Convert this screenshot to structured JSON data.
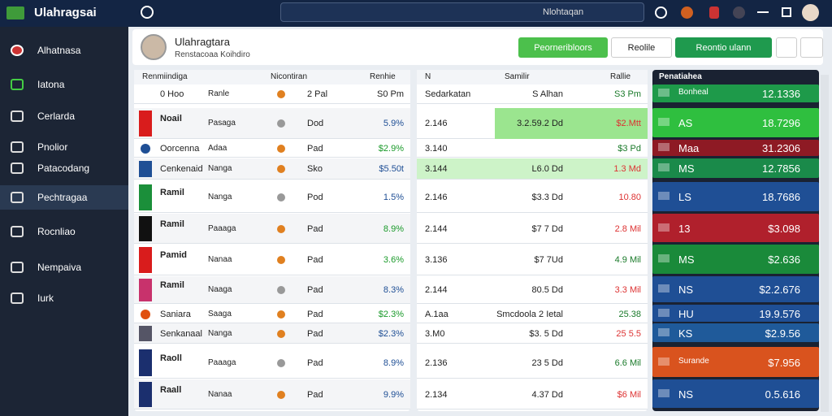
{
  "app": {
    "title": "Ulahragsai",
    "search": "Nlohtaqan"
  },
  "sidebar": {
    "items": [
      "Alhatnasa",
      "Iatona",
      "Cerlarda",
      "Pnolior",
      "Patacodang",
      "Pechtragaa",
      "Rocnliao",
      "Nempaiva",
      "Iurk"
    ]
  },
  "header": {
    "title": "Ulahragtara",
    "subtitle": "Renstacoaa Koihdiro",
    "buttons": [
      "Peorneribloors",
      "Reolile",
      "Reontio ulann"
    ]
  },
  "left_table": {
    "columns": [
      "Renmiindiga",
      "Nicontiran",
      "Renhie"
    ],
    "rows": [
      [
        "0 Hoo",
        "Ranle",
        "2 Pal",
        "S0 Pm"
      ],
      [
        "Noail",
        "Pasaga",
        "Dod",
        "5.9%"
      ],
      [
        "Oorcenna",
        "Adaa",
        "Pad",
        "$2.9%"
      ],
      [
        "Cenkenaid",
        "Nanga",
        "Sko",
        "$5.50t"
      ],
      [
        "Ramil",
        "Nanga",
        "Pod",
        "1.5%"
      ],
      [
        "Ramil",
        "Paaaga",
        "Pad",
        "8.9%"
      ],
      [
        "Pamid",
        "Nanaa",
        "Pad",
        "3.6%"
      ],
      [
        "Ramil",
        "Naaga",
        "Pad",
        "8.3%"
      ],
      [
        "Saniara",
        "Saaga",
        "Pad",
        "$2.3%"
      ],
      [
        "Senkanaal",
        "Nanga",
        "Pad",
        "$2.3%"
      ],
      [
        "Raoll",
        "Paaaga",
        "Pad",
        "8.9%"
      ],
      [
        "Raall",
        "Nanaa",
        "Pad",
        "9.9%"
      ]
    ]
  },
  "middle_table": {
    "columns": [
      "N",
      "Samilir",
      "Rallie"
    ],
    "rows": [
      [
        "Sedarkatan",
        "S Alhan",
        "S3 Pm"
      ],
      [
        "2.146",
        "3.2.59.2 Dd",
        "$2.Mtt"
      ],
      [
        "3.140",
        "",
        "$3 Pd"
      ],
      [
        "3.144",
        "L6.0 Dd",
        "1.3 Md"
      ],
      [
        "2.146",
        "$3.3 Dd",
        "10.80"
      ],
      [
        "2.144",
        "$7 7 Dd",
        "2.8 Mil"
      ],
      [
        "3.136",
        "$7 7Ud",
        "4.9 Mil"
      ],
      [
        "2.144",
        "80.5 Dd",
        "3.3 Mil"
      ],
      [
        "A.1aa",
        "Smcdoola 2 Ietal",
        "25.38"
      ],
      [
        "3.M0",
        "$3. 5 Dd",
        "25 5.5"
      ],
      [
        "2.136",
        "23 5 Dd",
        "6.6 Mil"
      ],
      [
        "2.134",
        "4.37 Dd",
        "$6 Mil"
      ]
    ]
  },
  "right_table": {
    "title": "Penatiahea",
    "rows": [
      [
        "Bonheal",
        "12.1336"
      ],
      [
        "AS",
        "18.7296"
      ],
      [
        "Maa",
        "31.2306"
      ],
      [
        "MS",
        "12.7856"
      ],
      [
        "LS",
        "18.7686"
      ],
      [
        "13",
        "$3.098"
      ],
      [
        "MS",
        "$2.636"
      ],
      [
        "NS",
        "$2.2.676"
      ],
      [
        "HU",
        "19.9.576"
      ],
      [
        "KS",
        "$2.9.56"
      ],
      [
        "Surande",
        "$7.956"
      ],
      [
        "NS",
        "0.5.616"
      ]
    ]
  }
}
